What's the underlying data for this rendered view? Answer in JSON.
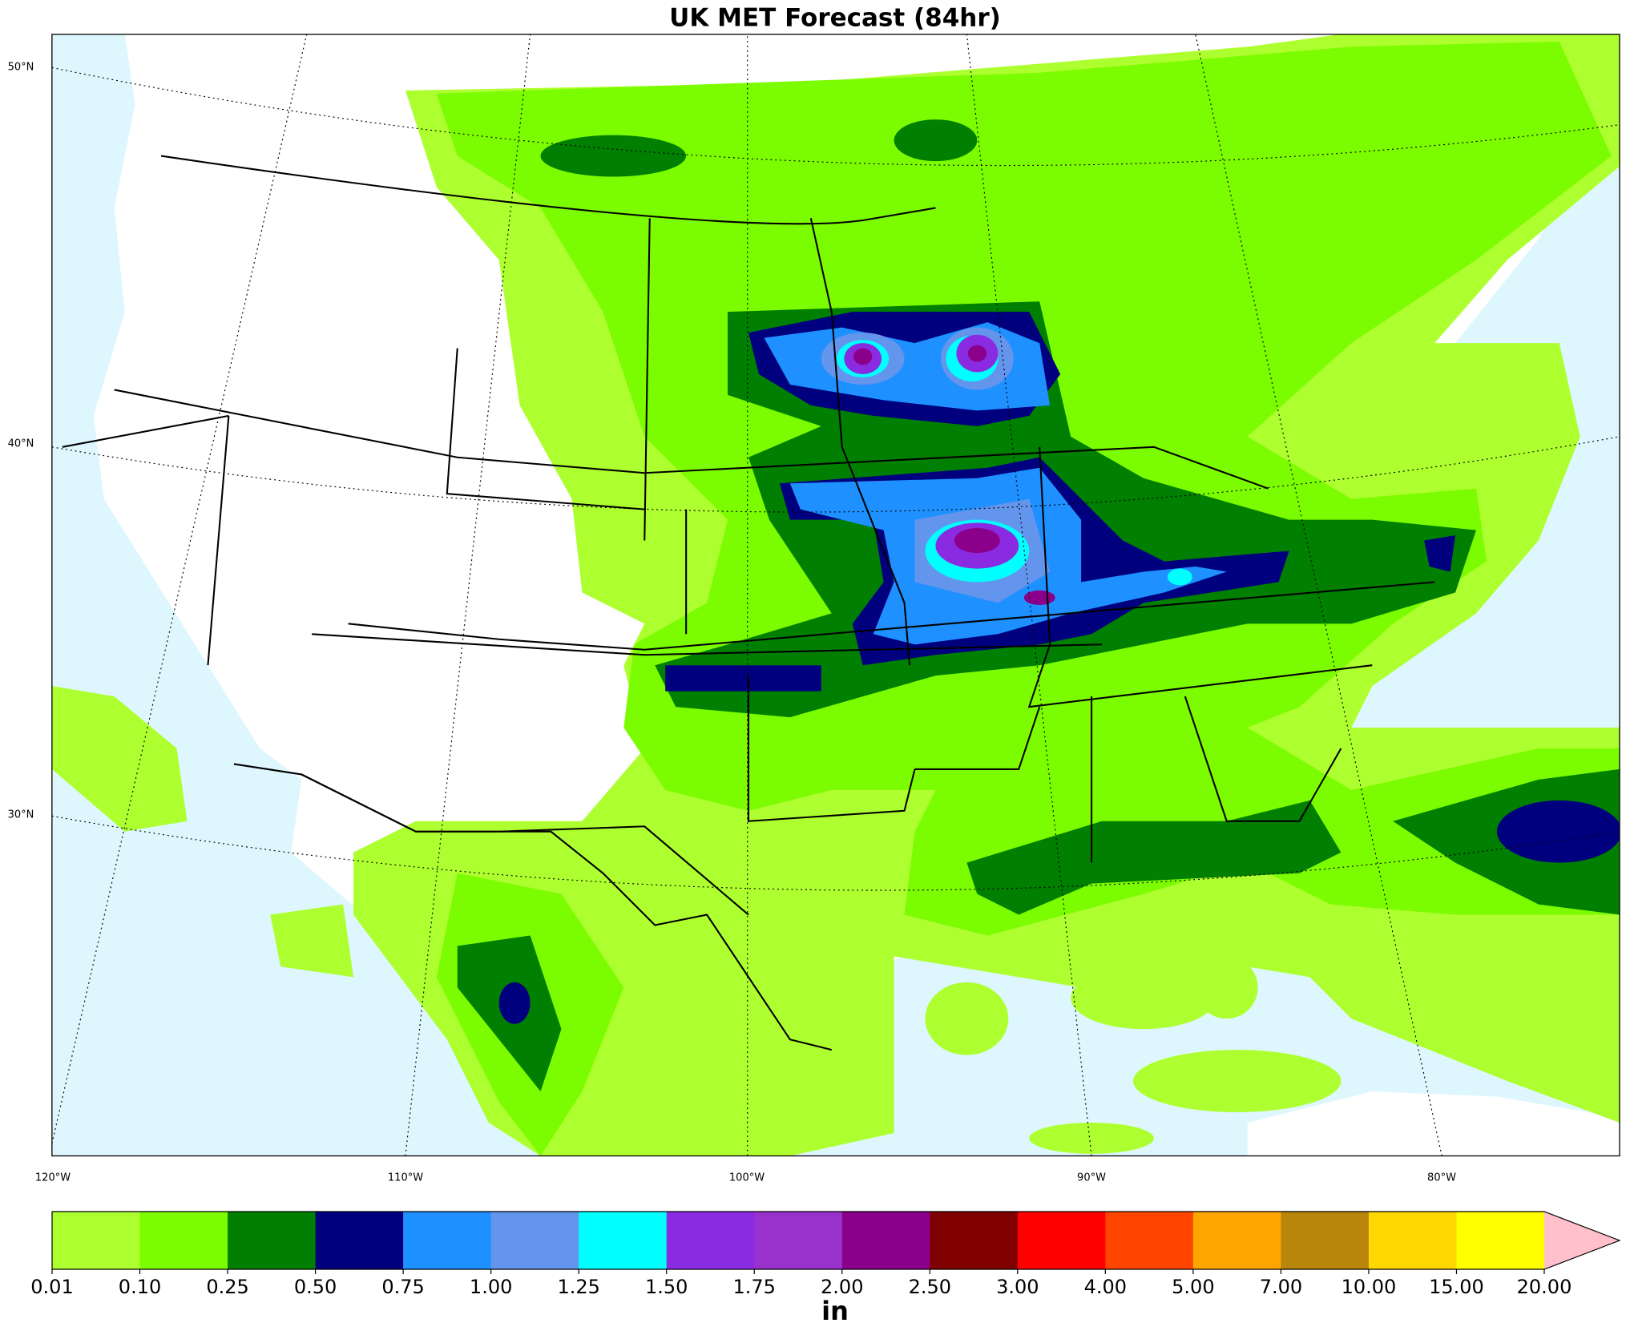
{
  "title": "UK MET Forecast (84hr)",
  "map": {
    "lat_labels": [
      "50°N",
      "40°N",
      "30°N"
    ],
    "lon_labels": [
      "120°W",
      "110°W",
      "100°W",
      "90°W",
      "80°W"
    ]
  },
  "colorbar": {
    "label": "in",
    "ticks": [
      0.01,
      {
        "value": 0.1,
        "label": "0.10"
      },
      {
        "value": 0.25,
        "label": "0.25"
      },
      {
        "value": 0.5,
        "label": "0.50"
      },
      {
        "value": 0.75,
        "label": "0.75"
      },
      {
        "value": 1,
        "label": "1.00"
      },
      {
        "value": 1.25,
        "label": "1.25"
      },
      {
        "value": 1.5,
        "label": "1.50"
      },
      {
        "value": 1.75,
        "label": "1.75"
      },
      {
        "value": 2,
        "label": "2.00"
      },
      {
        "value": 2.5,
        "label": "2.50"
      },
      {
        "value": 3,
        "label": "3.00"
      },
      {
        "value": 4,
        "label": "4.00"
      },
      {
        "value": 5,
        "label": "5.00"
      },
      {
        "value": 7,
        "label": "7.00"
      },
      {
        "value": 10,
        "label": "10.00"
      },
      {
        "value": 15,
        "label": "15.00"
      },
      {
        "value": 20,
        "label": "20.00"
      }
    ],
    "colors": [
      "#adff2f",
      "#7cfc00",
      "#007f00",
      "#00007f",
      "#1e90ff",
      "#6495ed",
      "#00ffff",
      "#8a2be2",
      "#9932cc",
      "#8b008b",
      "#800000",
      "#ff0000",
      "#ff4500",
      "#ffa500",
      "#b8860b",
      "#ffd700",
      "#ffff00"
    ],
    "extend_color": "#ffc0cb"
  }
}
